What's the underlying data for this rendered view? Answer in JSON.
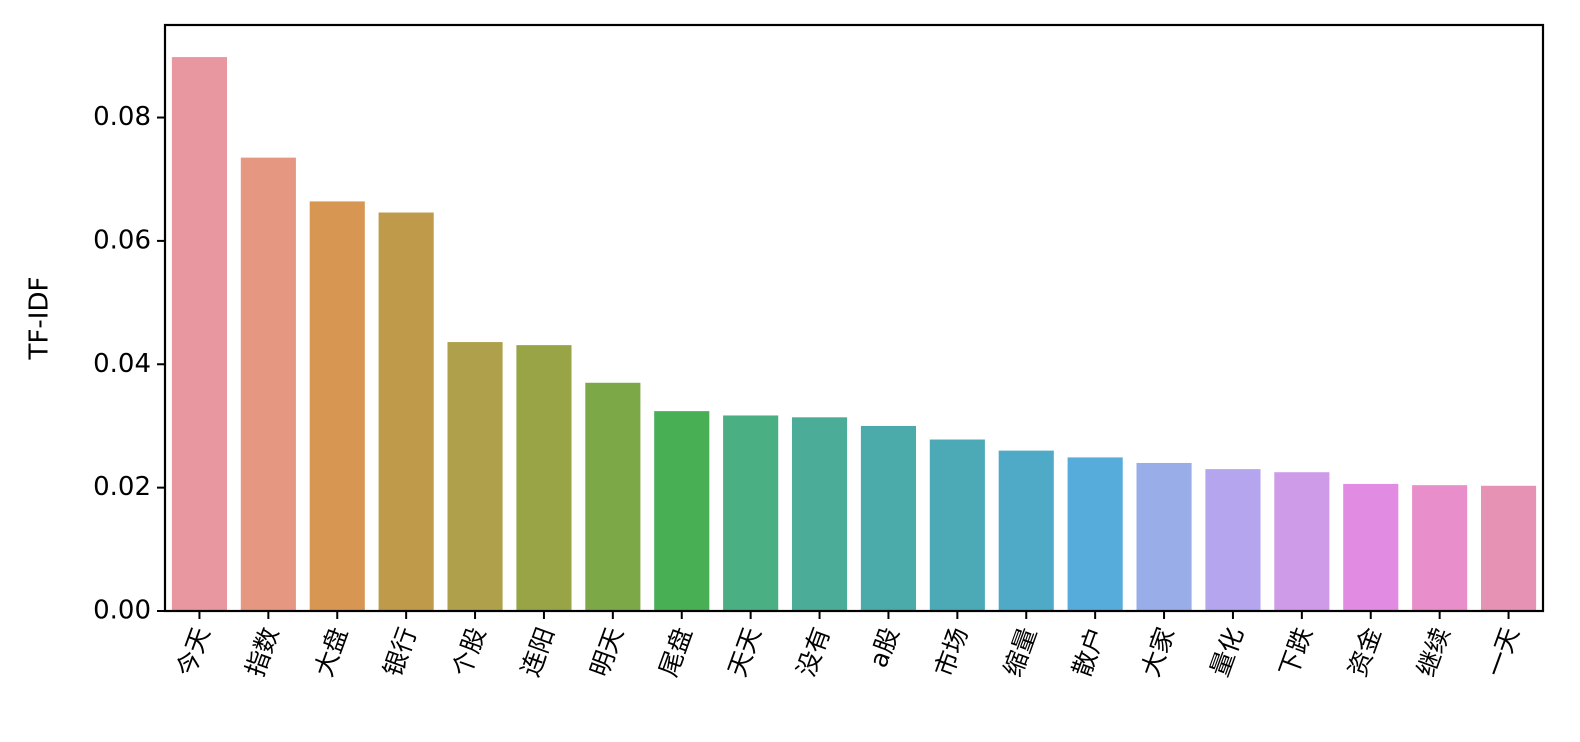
{
  "chart_data": {
    "type": "bar",
    "title": "",
    "xlabel": "",
    "ylabel": "TF-IDF",
    "ylim": [
      0,
      0.095
    ],
    "yticks": [
      0.0,
      0.02,
      0.04,
      0.06,
      0.08
    ],
    "ytick_labels": [
      "0.00",
      "0.02",
      "0.04",
      "0.06",
      "0.08"
    ],
    "grid": false,
    "legend": "none",
    "categories": [
      "今天",
      "指数",
      "大盘",
      "银行",
      "个股",
      "连阳",
      "明天",
      "尾盘",
      "天天",
      "没有",
      "a股",
      "市场",
      "缩量",
      "散户",
      "大家",
      "量化",
      "下跌",
      "资金",
      "继续",
      "一天"
    ],
    "values": [
      0.0898,
      0.0735,
      0.0664,
      0.0646,
      0.0436,
      0.0431,
      0.037,
      0.0324,
      0.0317,
      0.0314,
      0.03,
      0.0278,
      0.026,
      0.0249,
      0.024,
      0.023,
      0.0225,
      0.0206,
      0.0204,
      0.0203
    ],
    "colors": [
      "#E8969F",
      "#E59781",
      "#D79652",
      "#BF9A4A",
      "#AFA04C",
      "#99A447",
      "#7DA847",
      "#48AF55",
      "#4AB084",
      "#4BAD98",
      "#4BAAAA",
      "#4CAAB7",
      "#4FAAC7",
      "#56ADDB",
      "#99AEE8",
      "#B5A4EE",
      "#CE9BE8",
      "#E28BE3",
      "#E88ECA",
      "#E592B4"
    ]
  }
}
